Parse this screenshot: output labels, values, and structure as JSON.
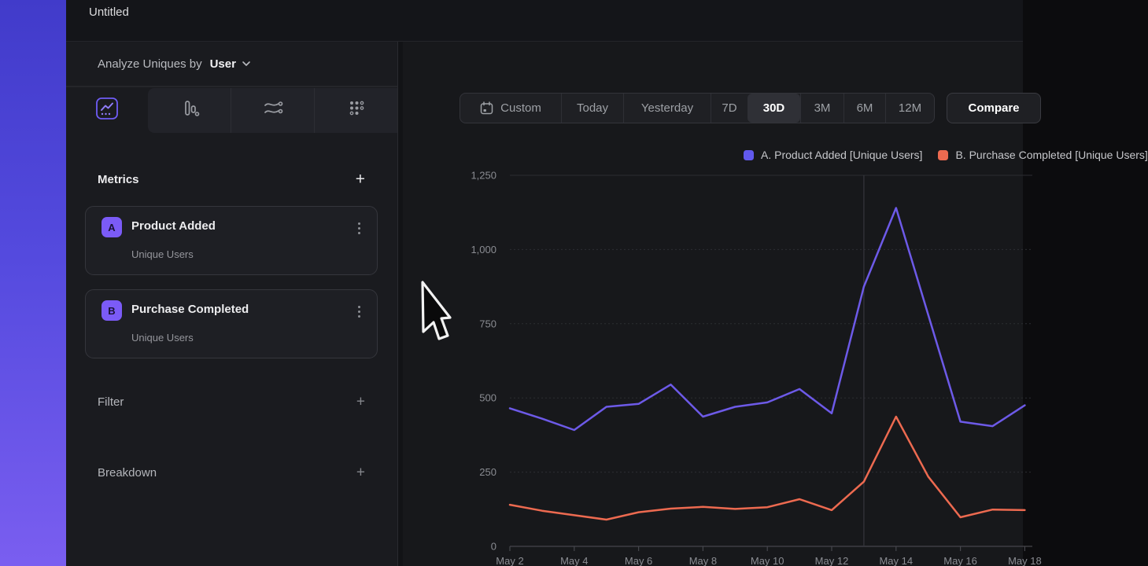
{
  "header": {
    "title": "Untitled"
  },
  "panel": {
    "analyze_label": "Analyze Uniques by",
    "analyze_value": "User",
    "view_tabs": [
      {
        "name": "line-chart",
        "selected": true
      },
      {
        "name": "bar-chart",
        "selected": false
      },
      {
        "name": "flow",
        "selected": false
      },
      {
        "name": "metric-grid",
        "selected": false
      }
    ],
    "metrics_title": "Metrics",
    "add_symbol": "+",
    "metrics": [
      {
        "badge": "A",
        "title": "Product Added",
        "subtitle": "Unique Users"
      },
      {
        "badge": "B",
        "title": "Purchase Completed",
        "subtitle": "Unique Users"
      }
    ],
    "filter_title": "Filter",
    "breakdown_title": "Breakdown"
  },
  "toolbar": {
    "ranges": [
      "Custom",
      "Today",
      "Yesterday",
      "7D",
      "30D",
      "3M",
      "6M",
      "12M"
    ],
    "selected": "30D",
    "compare": "Compare"
  },
  "legend": [
    {
      "label": "A. Product Added [Unique Users]",
      "color": "#6159ee"
    },
    {
      "label": "B. Purchase Completed [Unique Users]",
      "color": "#ed6a50"
    }
  ],
  "accent_colors": {
    "brand_purple": "#7b5bf7",
    "series_a": "#6d5ae8",
    "series_b": "#ed6a50"
  },
  "chart_data": {
    "type": "line",
    "x": [
      "May 2",
      "May 3",
      "May 4",
      "May 5",
      "May 6",
      "May 7",
      "May 8",
      "May 9",
      "May 10",
      "May 11",
      "May 12",
      "May 13",
      "May 14",
      "May 15",
      "May 16",
      "May 17",
      "May 18"
    ],
    "series": [
      {
        "name": "A. Product Added [Unique Users]",
        "color": "#6d5ae8",
        "values": [
          465,
          430,
          392,
          470,
          480,
          545,
          437,
          470,
          485,
          530,
          448,
          875,
          1140,
          780,
          420,
          405,
          475
        ]
      },
      {
        "name": "B. Purchase Completed [Unique Users]",
        "color": "#ed6a50",
        "values": [
          140,
          120,
          105,
          90,
          115,
          127,
          133,
          126,
          132,
          159,
          122,
          218,
          437,
          235,
          98,
          124,
          122
        ]
      }
    ],
    "ylim": [
      0,
      1250
    ],
    "yticks": [
      0,
      250,
      500,
      750,
      1000,
      1250
    ],
    "ytick_labels": [
      "0",
      "250",
      "500",
      "750",
      "1,000",
      "1,250"
    ],
    "xtick_labels": [
      "May 2",
      "May 4",
      "May 6",
      "May 8",
      "May 10",
      "May 12",
      "May 14",
      "May 16",
      "May 18"
    ],
    "grid": "horizontal",
    "vline_at": "May 13",
    "legend_position": "top-right"
  }
}
